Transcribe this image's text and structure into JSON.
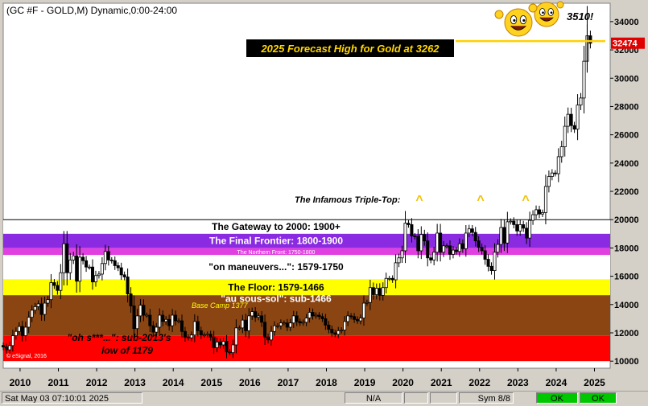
{
  "window": {
    "title": "(GC #F - GOLD,M) Dynamic,0:00-24:00"
  },
  "annotations": {
    "forecast": "2025 Forecast High for Gold at 3262",
    "peak": "3510!",
    "triple_top": "The Infamous Triple-Top:",
    "triple_mark": "^",
    "base_camp": "Base Camp 1377",
    "copyright": "© eSignal, 2016",
    "last_price": "3247.4",
    "last_price_label": "3247.4"
  },
  "bands": [
    {
      "label": "The Gateway to 2000:  1900+",
      "from": 1900,
      "to": 2000,
      "color": "#ffffff",
      "text_color": "#000000"
    },
    {
      "label": "The Final Frontier:  1800-1900",
      "from": 1800,
      "to": 1900,
      "color": "#8a2be2",
      "text_color": "#ffffff"
    },
    {
      "label": "The Northern Front:  1750-1800",
      "from": 1750,
      "to": 1800,
      "color": "#e040e0",
      "text_color": "#ffffff"
    },
    {
      "label": "\"on maneuvers...\":  1579-1750",
      "from": 1579,
      "to": 1750,
      "color": "#ffffff",
      "text_color": "#000000"
    },
    {
      "label": "The Floor:  1579-1466",
      "from": 1466,
      "to": 1579,
      "color": "#ffff00",
      "text_color": "#000000"
    },
    {
      "label": "\"au sous-sol\":  sub-1466",
      "from": 1179,
      "to": 1466,
      "color": "#8b4513",
      "text_color": "#ffffff"
    },
    {
      "label": "\"oh s***...\":  sub-2013's low of 1179",
      "from": 1000,
      "to": 1179,
      "color": "#ff0000",
      "text_color": "#000000"
    }
  ],
  "status": {
    "datetime": "Sat May 03 07:10:01 2025",
    "na": "N/A",
    "sym": "Sym 8/8",
    "ok1": "OK",
    "ok2": "OK"
  },
  "chart_data": {
    "type": "candlestick",
    "title": "(GC #F - GOLD,M) Dynamic,0:00-24:00",
    "x_tick_labels": [
      "2010",
      "2011",
      "2012",
      "2013",
      "2014",
      "2015",
      "2016",
      "2017",
      "2018",
      "2019",
      "2020",
      "2021",
      "2022",
      "2023",
      "2024",
      "2025"
    ],
    "y_tick_labels": [
      "10000",
      "12000",
      "14000",
      "16000",
      "18000",
      "20000",
      "22000",
      "24000",
      "26000",
      "28000",
      "30000",
      "32000",
      "34000"
    ],
    "y_range": [
      950,
      3530
    ],
    "x_range": [
      2009.6,
      2025.45
    ],
    "forecast_line": 3262,
    "last_price": 3247.4,
    "peak": 3510,
    "monthly_closes": [
      1100,
      1080,
      1110,
      1180,
      1210,
      1245,
      1180,
      1240,
      1310,
      1360,
      1385,
      1405,
      1330,
      1410,
      1435,
      1555,
      1535,
      1500,
      1625,
      1830,
      1625,
      1715,
      1745,
      1565,
      1735,
      1710,
      1665,
      1665,
      1560,
      1605,
      1615,
      1690,
      1775,
      1715,
      1710,
      1675,
      1660,
      1610,
      1595,
      1475,
      1390,
      1230,
      1320,
      1395,
      1325,
      1325,
      1250,
      1205,
      1240,
      1325,
      1280,
      1295,
      1250,
      1325,
      1285,
      1285,
      1210,
      1170,
      1165,
      1185,
      1280,
      1215,
      1185,
      1185,
      1190,
      1170,
      1095,
      1135,
      1115,
      1140,
      1065,
      1060,
      1115,
      1235,
      1235,
      1290,
      1215,
      1320,
      1350,
      1310,
      1320,
      1275,
      1170,
      1150,
      1210,
      1250,
      1250,
      1270,
      1270,
      1240,
      1270,
      1320,
      1280,
      1270,
      1275,
      1305,
      1345,
      1320,
      1325,
      1315,
      1300,
      1255,
      1225,
      1200,
      1190,
      1215,
      1220,
      1280,
      1320,
      1315,
      1295,
      1285,
      1305,
      1410,
      1415,
      1520,
      1470,
      1515,
      1465,
      1520,
      1585,
      1585,
      1575,
      1695,
      1730,
      1780,
      1975,
      1965,
      1885,
      1880,
      1780,
      1895,
      1850,
      1730,
      1715,
      1770,
      1905,
      1770,
      1815,
      1815,
      1755,
      1785,
      1775,
      1830,
      1795,
      1905,
      1935,
      1910,
      1850,
      1805,
      1780,
      1720,
      1670,
      1640,
      1770,
      1825,
      1945,
      1835,
      1985,
      1990,
      1965,
      1920,
      1965,
      1940,
      1870,
      1995,
      2035,
      2070,
      2040,
      2050,
      2235,
      2305,
      2330,
      2325,
      2445,
      2515,
      2660,
      2745,
      2665,
      2640,
      2810,
      2860,
      3120,
      3300,
      3247
    ]
  }
}
